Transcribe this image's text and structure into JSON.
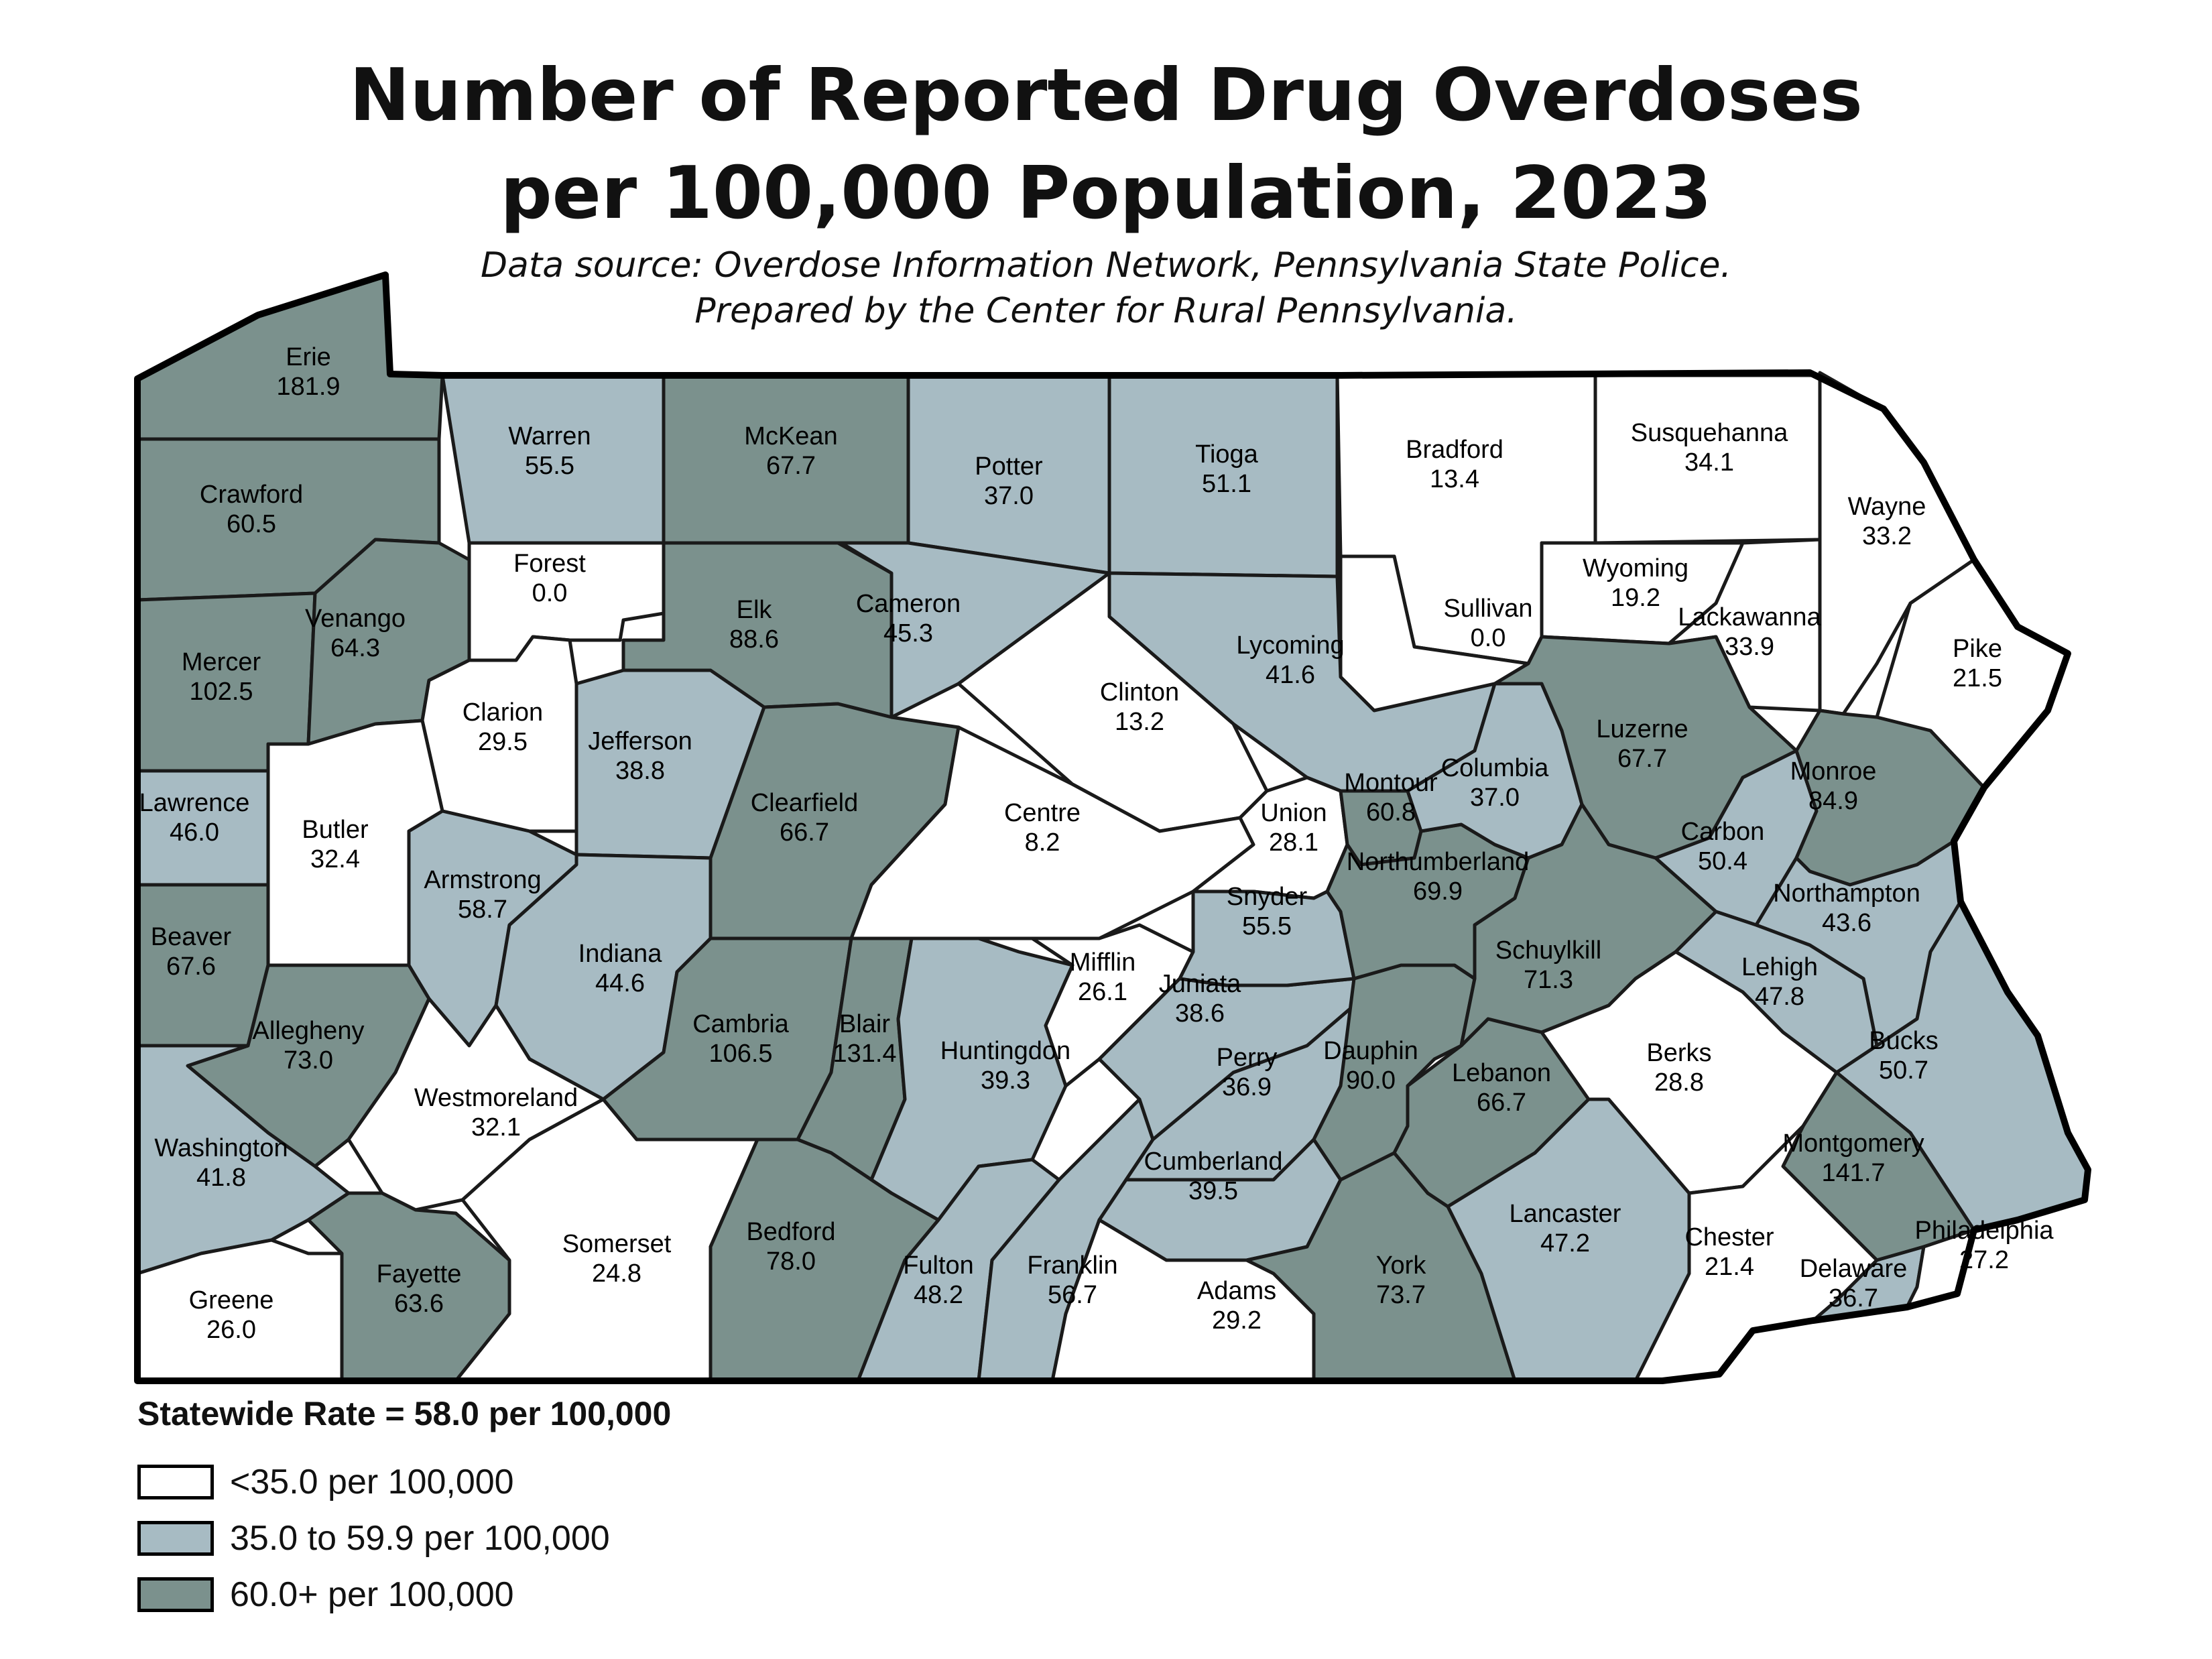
{
  "title_line1": "Number of Reported Drug Overdoses",
  "title_line2": "per 100,000 Population, 2023",
  "subtitle_line1": "Data source: Overdose Information Network, Pennsylvania State Police.",
  "subtitle_line2": "Prepared by the Center for Rural Pennsylvania.",
  "colors": {
    "low": "#ffffff",
    "mid": "#a7bbc3",
    "high": "#7b918d",
    "border": "#1a1a1a"
  },
  "counties": [
    {
      "name": "Erie",
      "rate": "181.9",
      "class": "high"
    },
    {
      "name": "Crawford",
      "rate": "60.5",
      "class": "high"
    },
    {
      "name": "Mercer",
      "rate": "102.5",
      "class": "high"
    },
    {
      "name": "Venango",
      "rate": "64.3",
      "class": "high"
    },
    {
      "name": "Warren",
      "rate": "55.5",
      "class": "mid"
    },
    {
      "name": "Forest",
      "rate": "0.0",
      "class": "low"
    },
    {
      "name": "McKean",
      "rate": "67.7",
      "class": "high"
    },
    {
      "name": "Elk",
      "rate": "88.6",
      "class": "high"
    },
    {
      "name": "Potter",
      "rate": "37.0",
      "class": "mid"
    },
    {
      "name": "Cameron",
      "rate": "45.3",
      "class": "mid"
    },
    {
      "name": "Tioga",
      "rate": "51.1",
      "class": "mid"
    },
    {
      "name": "Bradford",
      "rate": "13.4",
      "class": "low"
    },
    {
      "name": "Susquehanna",
      "rate": "34.1",
      "class": "low"
    },
    {
      "name": "Wayne",
      "rate": "33.2",
      "class": "low"
    },
    {
      "name": "Wyoming",
      "rate": "19.2",
      "class": "low"
    },
    {
      "name": "Sullivan",
      "rate": "0.0",
      "class": "low"
    },
    {
      "name": "Lackawanna",
      "rate": "33.9",
      "class": "low"
    },
    {
      "name": "Pike",
      "rate": "21.5",
      "class": "low"
    },
    {
      "name": "Lycoming",
      "rate": "41.6",
      "class": "mid"
    },
    {
      "name": "Clinton",
      "rate": "13.2",
      "class": "low"
    },
    {
      "name": "Clarion",
      "rate": "29.5",
      "class": "low"
    },
    {
      "name": "Jefferson",
      "rate": "38.8",
      "class": "mid"
    },
    {
      "name": "Clearfield",
      "rate": "66.7",
      "class": "high"
    },
    {
      "name": "Centre",
      "rate": "8.2",
      "class": "low"
    },
    {
      "name": "Lawrence",
      "rate": "46.0",
      "class": "mid"
    },
    {
      "name": "Butler",
      "rate": "32.4",
      "class": "low"
    },
    {
      "name": "Armstrong",
      "rate": "58.7",
      "class": "mid"
    },
    {
      "name": "Indiana",
      "rate": "44.6",
      "class": "mid"
    },
    {
      "name": "Beaver",
      "rate": "67.6",
      "class": "high"
    },
    {
      "name": "Allegheny",
      "rate": "73.0",
      "class": "high"
    },
    {
      "name": "Westmoreland",
      "rate": "32.1",
      "class": "low"
    },
    {
      "name": "Washington",
      "rate": "41.8",
      "class": "mid"
    },
    {
      "name": "Greene",
      "rate": "26.0",
      "class": "low"
    },
    {
      "name": "Fayette",
      "rate": "63.6",
      "class": "high"
    },
    {
      "name": "Somerset",
      "rate": "24.8",
      "class": "low"
    },
    {
      "name": "Cambria",
      "rate": "106.5",
      "class": "high"
    },
    {
      "name": "Blair",
      "rate": "131.4",
      "class": "high"
    },
    {
      "name": "Bedford",
      "rate": "78.0",
      "class": "high"
    },
    {
      "name": "Huntingdon",
      "rate": "39.3",
      "class": "mid"
    },
    {
      "name": "Fulton",
      "rate": "48.2",
      "class": "mid"
    },
    {
      "name": "Franklin",
      "rate": "56.7",
      "class": "mid"
    },
    {
      "name": "Mifflin",
      "rate": "26.1",
      "class": "low"
    },
    {
      "name": "Juniata",
      "rate": "38.6",
      "class": "mid"
    },
    {
      "name": "Perry",
      "rate": "36.9",
      "class": "mid"
    },
    {
      "name": "Cumberland",
      "rate": "39.5",
      "class": "mid"
    },
    {
      "name": "Adams",
      "rate": "29.2",
      "class": "low"
    },
    {
      "name": "York",
      "rate": "73.7",
      "class": "high"
    },
    {
      "name": "Dauphin",
      "rate": "90.0",
      "class": "high"
    },
    {
      "name": "Lebanon",
      "rate": "66.7",
      "class": "high"
    },
    {
      "name": "Lancaster",
      "rate": "47.2",
      "class": "mid"
    },
    {
      "name": "Union",
      "rate": "28.1",
      "class": "low"
    },
    {
      "name": "Snyder",
      "rate": "55.5",
      "class": "mid"
    },
    {
      "name": "Montour",
      "rate": "60.8",
      "class": "high"
    },
    {
      "name": "Northumberland",
      "rate": "69.9",
      "class": "high"
    },
    {
      "name": "Columbia",
      "rate": "37.0",
      "class": "mid"
    },
    {
      "name": "Luzerne",
      "rate": "67.7",
      "class": "high"
    },
    {
      "name": "Schuylkill",
      "rate": "71.3",
      "class": "high"
    },
    {
      "name": "Carbon",
      "rate": "50.4",
      "class": "mid"
    },
    {
      "name": "Monroe",
      "rate": "84.9",
      "class": "high"
    },
    {
      "name": "Northampton",
      "rate": "43.6",
      "class": "mid"
    },
    {
      "name": "Lehigh",
      "rate": "47.8",
      "class": "mid"
    },
    {
      "name": "Berks",
      "rate": "28.8",
      "class": "low"
    },
    {
      "name": "Bucks",
      "rate": "50.7",
      "class": "mid"
    },
    {
      "name": "Montgomery",
      "rate": "141.7",
      "class": "high"
    },
    {
      "name": "Chester",
      "rate": "21.4",
      "class": "low"
    },
    {
      "name": "Delaware",
      "rate": "36.7",
      "class": "mid"
    },
    {
      "name": "Philadelphia",
      "rate": "27.2",
      "class": "low"
    }
  ],
  "statewide": "Statewide Rate = 58.0 per 100,000",
  "legend": [
    {
      "label": "<35.0 per 100,000",
      "class": "low"
    },
    {
      "label": "35.0 to 59.9 per 100,000",
      "class": "mid"
    },
    {
      "label": "60.0+ per 100,000",
      "class": "high"
    }
  ]
}
